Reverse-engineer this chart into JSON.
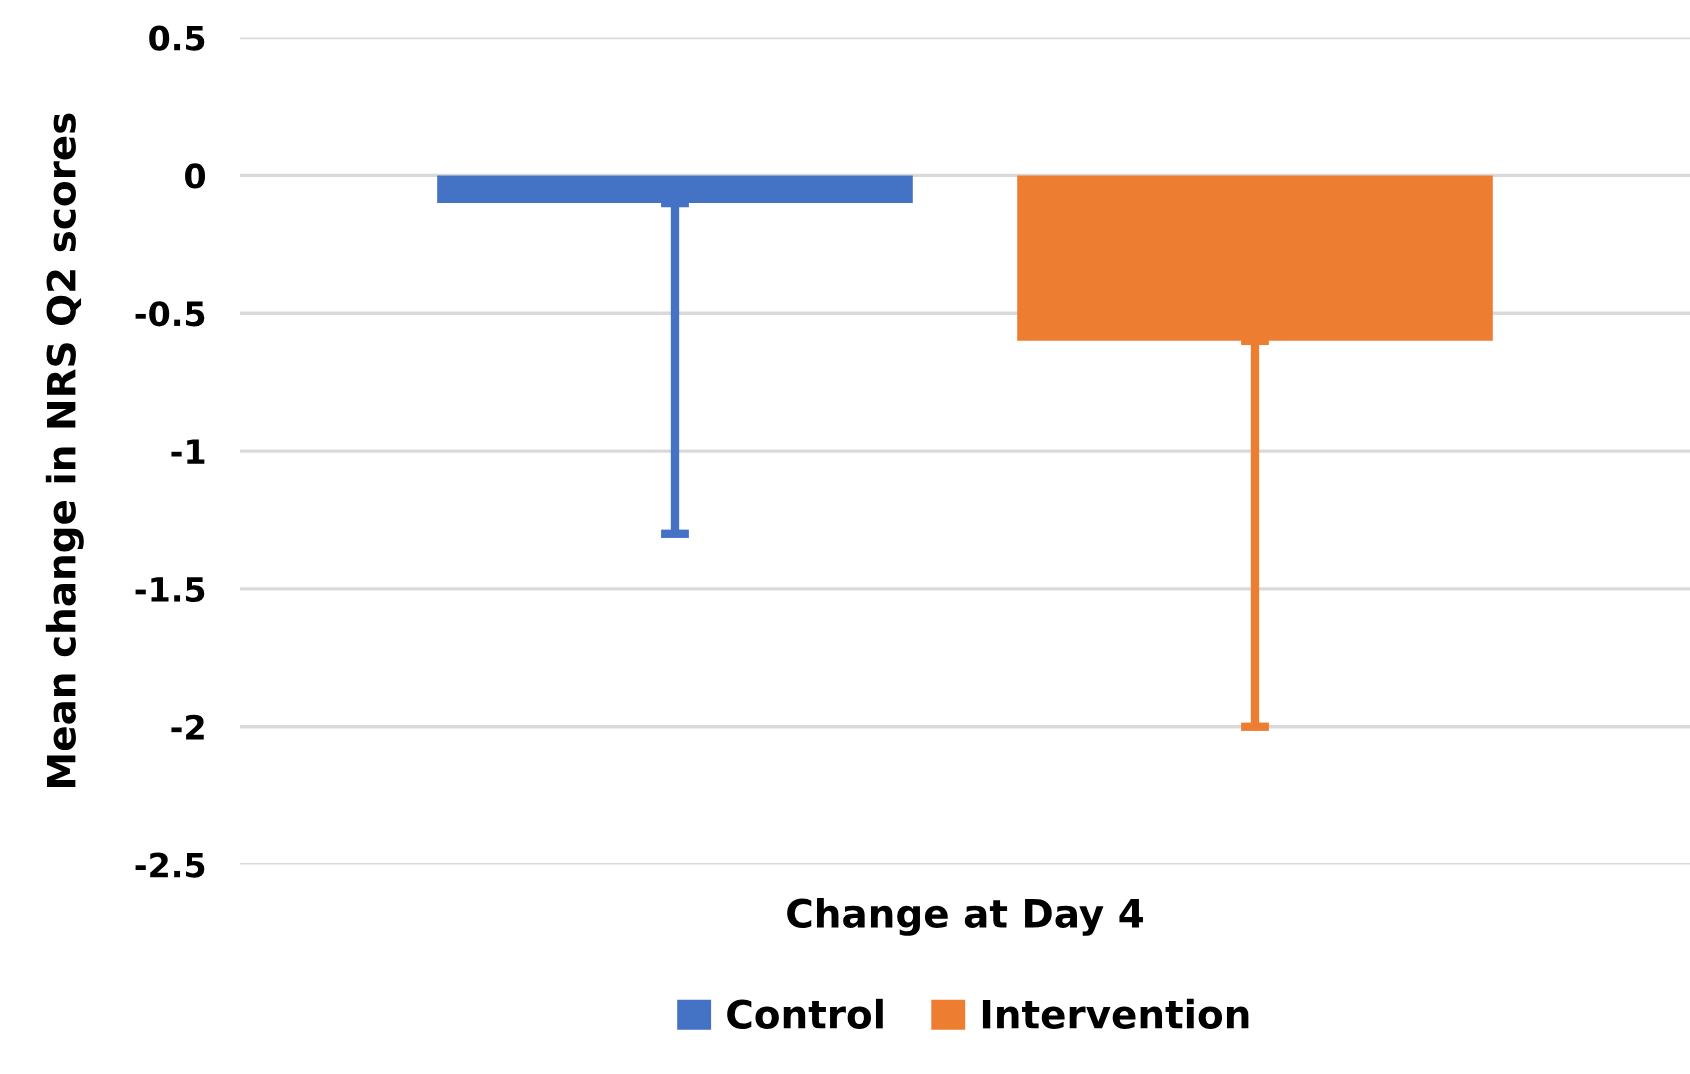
{
  "chart_data": {
    "type": "bar",
    "ylabel": "Mean change in NRS Q2 scores",
    "categories": [
      "Change at Day 4"
    ],
    "series": [
      {
        "name": "Control",
        "color": "#4472c4",
        "values": [
          -0.1
        ],
        "errors": [
          [
            -1.3,
            -0.1
          ]
        ]
      },
      {
        "name": "Intervention",
        "color": "#ed7d31",
        "values": [
          -0.6
        ],
        "errors": [
          [
            -2.0,
            -0.6
          ]
        ]
      }
    ],
    "ylim": [
      -2.5,
      0.5
    ],
    "yticks": [
      0.5,
      0,
      -0.5,
      -1,
      -1.5,
      -2,
      -2.5
    ],
    "grid": "y",
    "legend": "bottom"
  }
}
